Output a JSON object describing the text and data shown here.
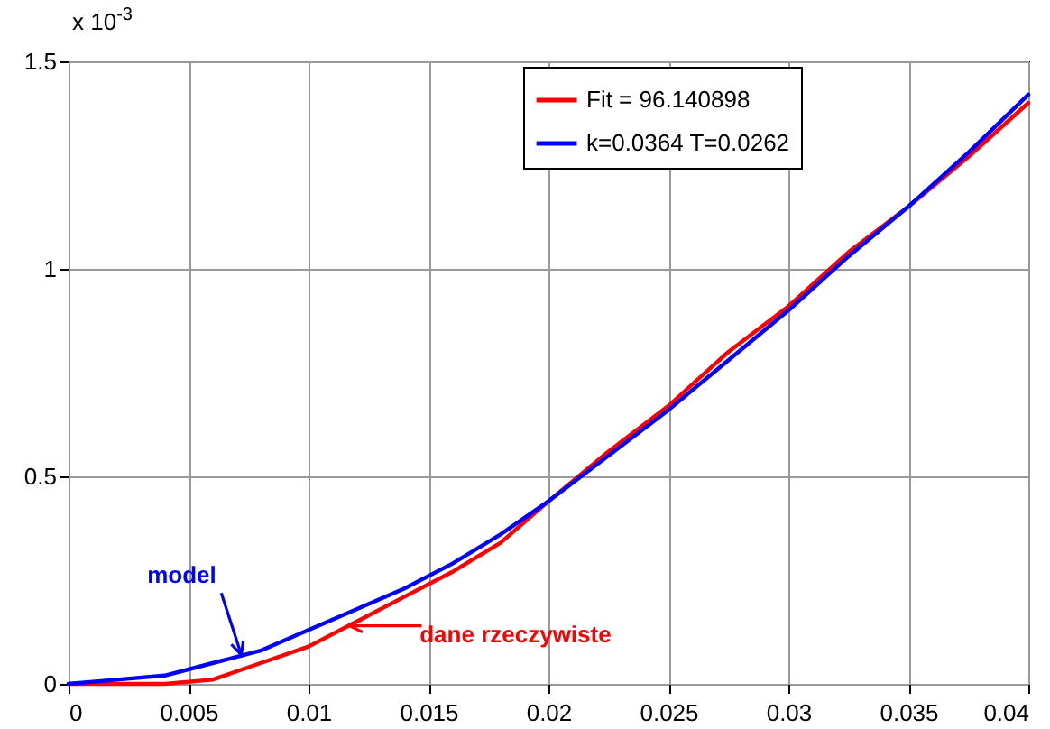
{
  "chart_data": {
    "type": "line",
    "ylabel": "x 10$^{-3}$",
    "xlim": [
      0,
      0.04
    ],
    "xticks": [
      0,
      0.005,
      0.01,
      0.015,
      0.02,
      0.025,
      0.03,
      0.035,
      0.04
    ],
    "ylim": [
      0,
      1.5
    ],
    "yticks": [
      0,
      0.5,
      1,
      1.5
    ],
    "grid": true,
    "legend": "top right",
    "line_style": "solid",
    "x": [
      0,
      0.002,
      0.004,
      0.006,
      0.008,
      0.01,
      0.012,
      0.014,
      0.016,
      0.018,
      0.02,
      0.0225,
      0.025,
      0.0275,
      0.03,
      0.0325,
      0.035,
      0.0375,
      0.04
    ],
    "series": [
      {
        "name": "Fit = 96.140898",
        "color": "#ff0000",
        "values": [
          0,
          0,
          0,
          0.01,
          0.05,
          0.09,
          0.15,
          0.21,
          0.27,
          0.34,
          0.44,
          0.56,
          0.67,
          0.8,
          0.91,
          1.04,
          1.15,
          1.27,
          1.4
        ]
      },
      {
        "name": "k=0.0364 T=0.0262",
        "color": "#0000ff",
        "values": [
          0,
          0.01,
          0.02,
          0.05,
          0.08,
          0.13,
          0.18,
          0.23,
          0.29,
          0.36,
          0.44,
          0.55,
          0.66,
          0.78,
          0.9,
          1.03,
          1.15,
          1.28,
          1.42
        ]
      }
    ],
    "annotations": [
      {
        "text": "dane rzeczywiste",
        "x": 0.0117,
        "y": 0.14
      },
      {
        "text": "model",
        "x": 0.0072,
        "y": 0.07
      }
    ]
  }
}
